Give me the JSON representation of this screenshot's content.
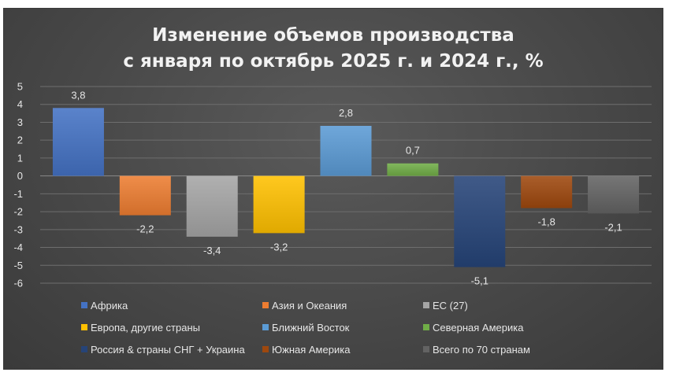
{
  "chart_data": {
    "type": "bar",
    "title": [
      "Изменение объемов производства",
      "с января по октябрь 2025 г. и 2024 г., %"
    ],
    "xlabel": "",
    "ylabel": "",
    "ylim": [
      -6,
      5
    ],
    "yticks": [
      5,
      4,
      3,
      2,
      1,
      0,
      -1,
      -2,
      -3,
      -4,
      -5,
      -6
    ],
    "ytick_labels": [
      "5",
      "4",
      "3",
      "2",
      "1",
      "0",
      "-1",
      "-2",
      "-3",
      "-4",
      "-5",
      "-6"
    ],
    "grid": true,
    "legend_position": "bottom",
    "series": [
      {
        "name": "Африка",
        "value": 3.8,
        "label": "3,8",
        "color": "#4472c4"
      },
      {
        "name": "Азия и Океания",
        "value": -2.2,
        "label": "-2,2",
        "color": "#ed7d31"
      },
      {
        "name": "ЕС (27)",
        "value": -3.4,
        "label": "-3,4",
        "color": "#a5a5a5"
      },
      {
        "name": "Европа, другие страны",
        "value": -3.2,
        "label": "-3,2",
        "color": "#ffc000"
      },
      {
        "name": "Ближний Восток",
        "value": 2.8,
        "label": "2,8",
        "color": "#5b9bd5"
      },
      {
        "name": "Северная Америка",
        "value": 0.7,
        "label": "0,7",
        "color": "#70ad47"
      },
      {
        "name": "Россия & страны СНГ + Украина",
        "value": -5.1,
        "label": "-5,1",
        "color": "#264478"
      },
      {
        "name": "Южная Америка",
        "value": -1.8,
        "label": "-1,8",
        "color": "#9e480e"
      },
      {
        "name": "Всего по 70 странам",
        "value": -2.1,
        "label": "-2,1",
        "color": "#636363"
      }
    ]
  }
}
